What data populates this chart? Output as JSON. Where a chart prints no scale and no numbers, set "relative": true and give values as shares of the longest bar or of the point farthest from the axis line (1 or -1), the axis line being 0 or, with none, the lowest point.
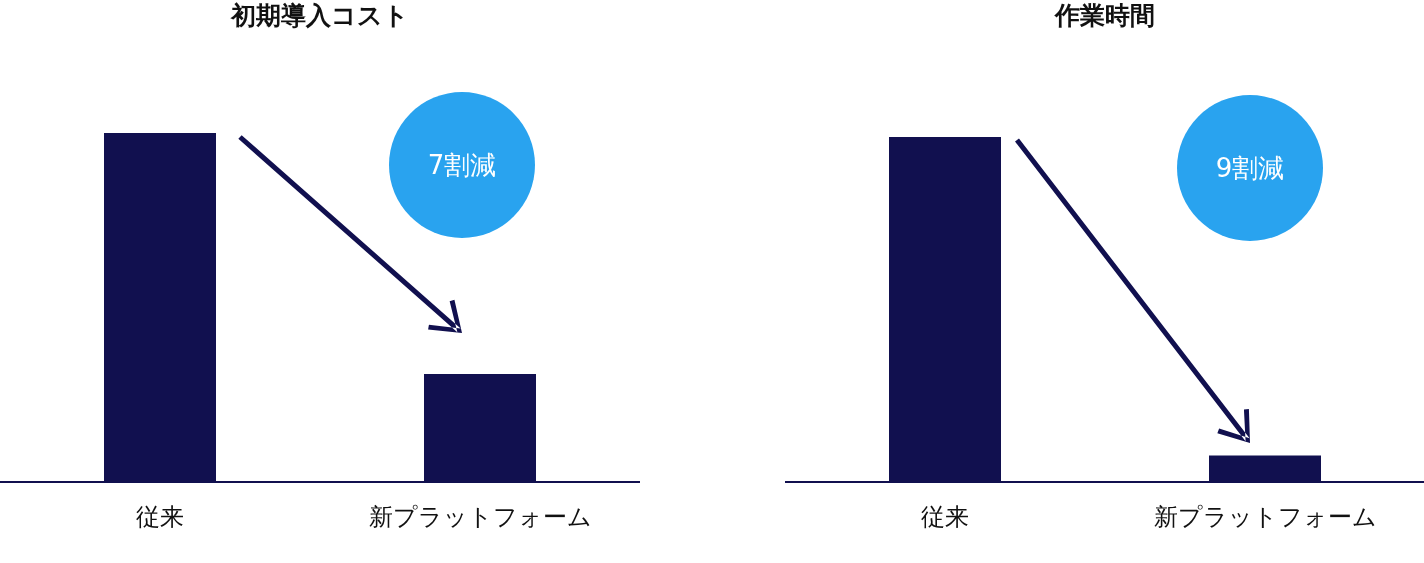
{
  "chart_data": [
    {
      "type": "bar",
      "title": "初期導入コスト",
      "categories": [
        "従来",
        "新プラットフォーム"
      ],
      "values": [
        1,
        0.31
      ],
      "color": "#11104f",
      "relative": true,
      "grid": false,
      "legend": false,
      "annotations": [
        "7割減"
      ]
    },
    {
      "type": "bar",
      "title": "作業時間",
      "categories": [
        "従来",
        "新プラットフォーム"
      ],
      "values": [
        1,
        0.077
      ],
      "color": "#11104f",
      "relative": true,
      "grid": false,
      "legend": false,
      "annotations": [
        "9割減"
      ]
    }
  ]
}
